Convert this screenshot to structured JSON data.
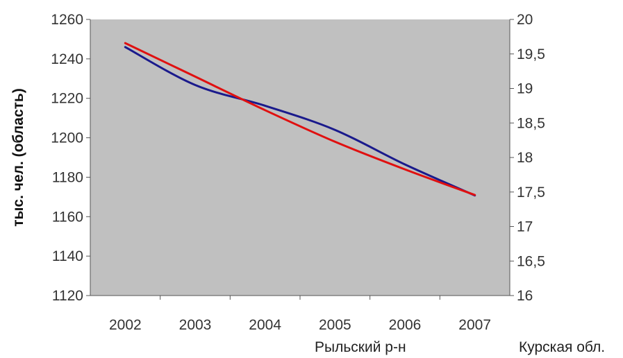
{
  "chart_data": {
    "type": "line",
    "categories": [
      "2002",
      "2003",
      "2004",
      "2005",
      "2006",
      "2007"
    ],
    "ylabel": "тыс. чел. (область)",
    "y_left_ticks": [
      "1120",
      "1140",
      "1160",
      "1180",
      "1200",
      "1220",
      "1240",
      "1260"
    ],
    "y_right_ticks": [
      "16",
      "16,5",
      "17",
      "17,5",
      "18",
      "18,5",
      "19",
      "19,5",
      "20"
    ],
    "ylim_left": [
      1120,
      1260
    ],
    "ylim_right": [
      16,
      20
    ],
    "grid": false,
    "series": [
      {
        "name": "Рыльский р-н",
        "axis": "right",
        "color": "#1a1a8c",
        "values": [
          19.6,
          19.05,
          18.75,
          18.4,
          17.9,
          17.45
        ]
      },
      {
        "name": "Курская обл.",
        "axis": "left",
        "color": "#e01010",
        "values": [
          1248,
          1231,
          1214,
          1198,
          1184,
          1171
        ]
      }
    ],
    "colors": {
      "plot_background": "#c0c0c0",
      "axis": "#555555"
    }
  }
}
